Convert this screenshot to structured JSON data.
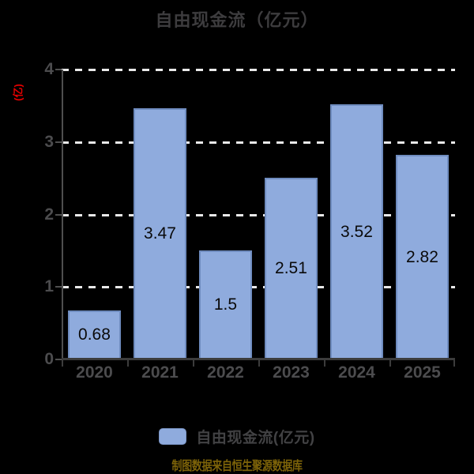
{
  "chart_data": {
    "type": "bar",
    "title": "自由现金流（亿元）",
    "categories": [
      "2020",
      "2021",
      "2022",
      "2023",
      "2024",
      "2025"
    ],
    "values": [
      0.68,
      3.47,
      1.5,
      2.51,
      3.52,
      2.82
    ],
    "series_name": "自由现金流(亿元)",
    "xlabel": "",
    "ylabel": "(亿)",
    "ylim": [
      0,
      4
    ],
    "yticks": [
      0,
      1,
      2,
      3,
      4
    ],
    "grid": "horizontal-dashed",
    "legend_position": "bottom",
    "value_labels": "inside-center"
  },
  "legend": {
    "label": "自由现金流(亿元)"
  },
  "footer": {
    "text": "制图数据来自恒生聚源数据库"
  },
  "colors": {
    "background": "#000000",
    "bar_fill": "#8fabdd",
    "bar_border": "#6f8cbf",
    "gridline": "#e9e9e9",
    "title_text": "#3d3c3e",
    "axis_text": "#4c4c4e",
    "value_label_text": "#0a0a0a",
    "ylabel_text": "#e60000",
    "footer_text": "#7d6309",
    "y_axis_line": "#4f4f4f",
    "x_axis_line": "#3c3c3c"
  }
}
